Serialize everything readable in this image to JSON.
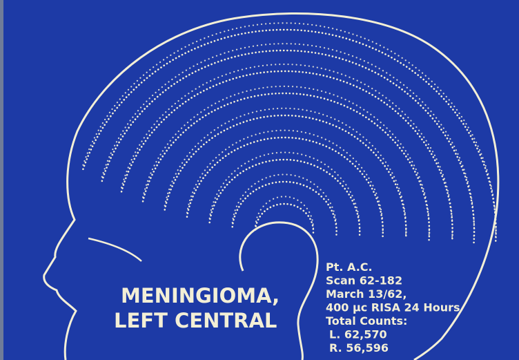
{
  "title": {
    "lines": [
      "MENINGIOMA,",
      "LEFT CENTRAL"
    ]
  },
  "info": {
    "lines": [
      "Pt. A.C.",
      "Scan 62-182",
      "March 13/62,",
      "400 µc RISA 24 Hours",
      "Total Counts:",
      "L. 62,570",
      "R. 56,596"
    ]
  }
}
